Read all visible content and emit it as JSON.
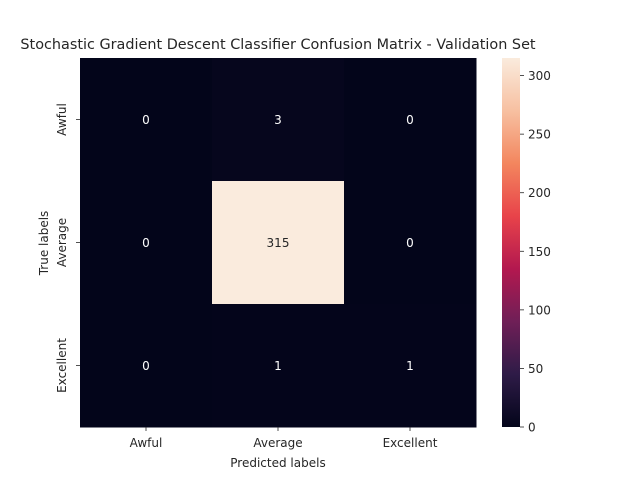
{
  "chart_data": {
    "type": "heatmap",
    "title": "Stochastic Gradient Descent Classifier Confusion Matrix - Validation Set",
    "xlabel": "Predicted labels",
    "ylabel": "True labels",
    "x_categories": [
      "Awful",
      "Average",
      "Excellent"
    ],
    "y_categories": [
      "Awful",
      "Average",
      "Excellent"
    ],
    "values": [
      [
        0,
        3,
        0
      ],
      [
        0,
        315,
        0
      ],
      [
        0,
        1,
        1
      ]
    ],
    "colorbar": {
      "range": [
        0,
        315
      ],
      "ticks": [
        0,
        50,
        100,
        150,
        200,
        250,
        300
      ]
    },
    "colormap": [
      "#03051a",
      "#2e1b47",
      "#6f1f57",
      "#b3184f",
      "#e8434a",
      "#f3865e",
      "#f7c0a1",
      "#faebdd"
    ]
  }
}
